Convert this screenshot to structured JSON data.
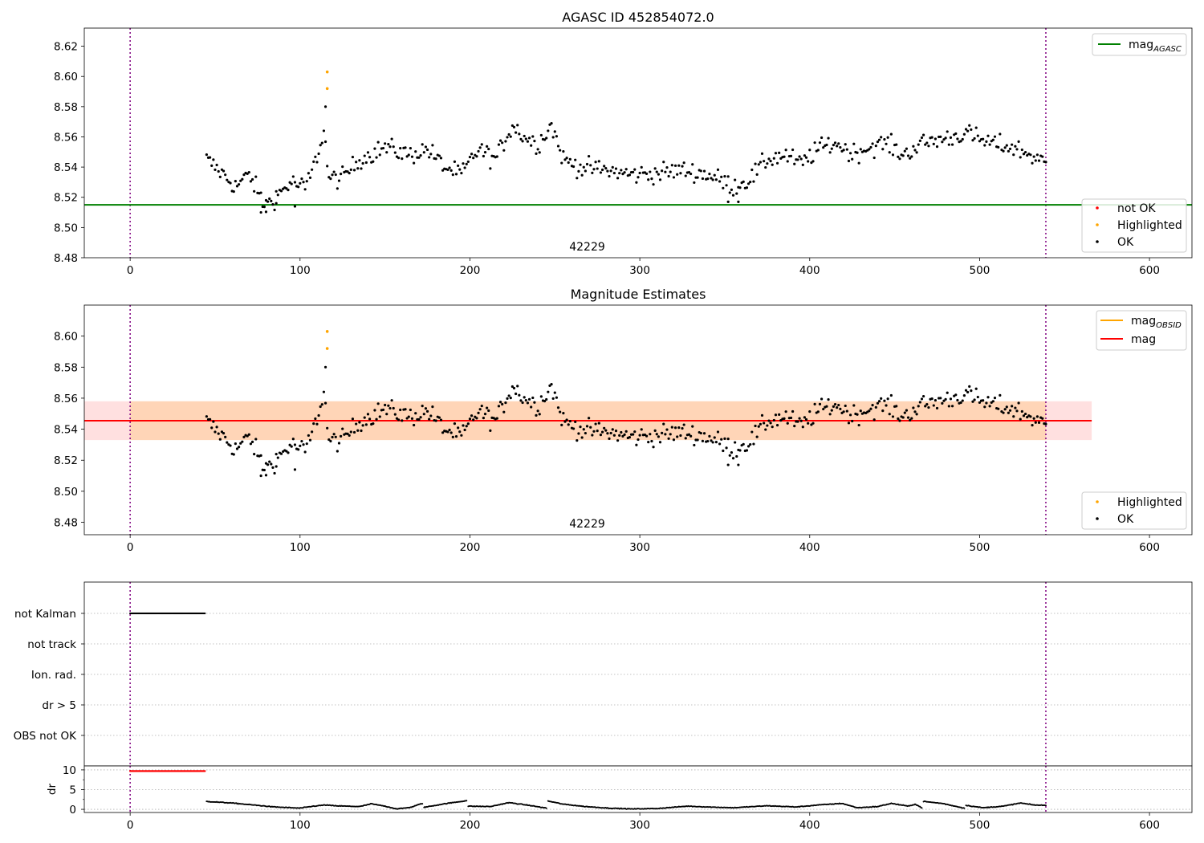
{
  "chart_data": [
    {
      "type": "scatter",
      "title": "AGASC ID 452854072.0",
      "xlim": [
        -27,
        625
      ],
      "ylim": [
        8.48,
        8.632
      ],
      "xticks": [
        0,
        100,
        200,
        300,
        400,
        500,
        600
      ],
      "yticks": [
        8.48,
        8.5,
        8.52,
        8.54,
        8.56,
        8.58,
        8.6,
        8.62
      ],
      "vlines": [
        0,
        539
      ],
      "obsid_label": "42229",
      "obsid_label_x": 269,
      "hlines": [
        {
          "name": "mag_AGASC",
          "y": 8.515,
          "color": "#008000"
        }
      ],
      "legend_lines": [
        {
          "main": "mag",
          "sub": "AGASC",
          "color": "#008000"
        }
      ],
      "legend_points": [
        {
          "label": "not OK",
          "color": "#ff0000"
        },
        {
          "label": "Highlighted",
          "color": "#ffa500"
        },
        {
          "label": "OK",
          "color": "#000000"
        }
      ],
      "highlighted": [
        [
          116,
          8.592
        ],
        [
          116,
          8.603
        ]
      ],
      "ok_series": {
        "x_start": 45,
        "x_end": 539,
        "dx": 1,
        "anchors": [
          [
            45,
            8.545
          ],
          [
            55,
            8.535
          ],
          [
            62,
            8.527
          ],
          [
            70,
            8.535
          ],
          [
            76,
            8.522
          ],
          [
            79,
            8.513
          ],
          [
            85,
            8.52
          ],
          [
            95,
            8.53
          ],
          [
            103,
            8.526
          ],
          [
            108,
            8.54
          ],
          [
            112,
            8.555
          ],
          [
            114,
            8.565
          ],
          [
            117,
            8.532
          ],
          [
            125,
            8.533
          ],
          [
            135,
            8.545
          ],
          [
            150,
            8.553
          ],
          [
            165,
            8.548
          ],
          [
            175,
            8.552
          ],
          [
            185,
            8.54
          ],
          [
            195,
            8.535
          ],
          [
            205,
            8.552
          ],
          [
            215,
            8.545
          ],
          [
            225,
            8.568
          ],
          [
            232,
            8.56
          ],
          [
            240,
            8.555
          ],
          [
            248,
            8.568
          ],
          [
            255,
            8.545
          ],
          [
            265,
            8.54
          ],
          [
            280,
            8.538
          ],
          [
            295,
            8.535
          ],
          [
            310,
            8.536
          ],
          [
            325,
            8.538
          ],
          [
            340,
            8.535
          ],
          [
            350,
            8.53
          ],
          [
            355,
            8.527
          ],
          [
            365,
            8.532
          ],
          [
            375,
            8.545
          ],
          [
            385,
            8.548
          ],
          [
            395,
            8.542
          ],
          [
            405,
            8.552
          ],
          [
            415,
            8.556
          ],
          [
            425,
            8.549
          ],
          [
            435,
            8.553
          ],
          [
            445,
            8.556
          ],
          [
            455,
            8.548
          ],
          [
            465,
            8.555
          ],
          [
            475,
            8.558
          ],
          [
            485,
            8.56
          ],
          [
            492,
            8.563
          ],
          [
            500,
            8.558
          ],
          [
            510,
            8.555
          ],
          [
            520,
            8.553
          ],
          [
            530,
            8.548
          ],
          [
            539,
            8.542
          ]
        ],
        "noise": 0.0045,
        "outliers": [
          [
            77,
            8.51
          ],
          [
            80,
            8.518
          ],
          [
            86,
            8.516
          ],
          [
            97,
            8.514
          ],
          [
            115,
            8.58
          ],
          [
            352,
            8.517
          ],
          [
            358,
            8.517
          ]
        ]
      }
    },
    {
      "type": "scatter",
      "title": "Magnitude Estimates",
      "xlim": [
        -27,
        625
      ],
      "ylim": [
        8.472,
        8.62
      ],
      "xticks": [
        0,
        100,
        200,
        300,
        400,
        500,
        600
      ],
      "yticks": [
        8.48,
        8.5,
        8.52,
        8.54,
        8.56,
        8.58,
        8.6
      ],
      "vlines": [
        0,
        539
      ],
      "obsid_label": "42229",
      "obsid_label_x": 269,
      "hlines": [
        {
          "name": "mag",
          "y": 8.5455,
          "color": "#ff0000",
          "x_end": 566
        }
      ],
      "bands": [
        {
          "name": "mag range",
          "y0": 8.533,
          "y1": 8.558,
          "color": "#ff0000",
          "opacity": 0.12,
          "x_end": 566
        },
        {
          "name": "mag_OBSID range",
          "y0": 8.533,
          "y1": 8.558,
          "color": "#ffa500",
          "opacity": 0.18,
          "x_start": 0,
          "x_end": 539
        }
      ],
      "legend_lines": [
        {
          "main": "mag",
          "sub": "OBSID",
          "color": "#ffa500"
        },
        {
          "main": "mag",
          "sub": "",
          "color": "#ff0000"
        }
      ],
      "legend_points": [
        {
          "label": "Highlighted",
          "color": "#ffa500"
        },
        {
          "label": "OK",
          "color": "#000000"
        }
      ],
      "highlighted": [
        [
          116,
          8.592
        ],
        [
          116,
          8.603
        ]
      ],
      "same_series_as": 0
    },
    {
      "type": "scatter",
      "title": "",
      "xlim": [
        -27,
        625
      ],
      "vlines": [
        0,
        539
      ],
      "flags": [
        "not Kalman",
        "not track",
        "Ion. rad.",
        "dr > 5",
        "OBS not OK"
      ],
      "flag_points": [
        {
          "flag": "not Kalman",
          "x_start": 0,
          "x_end": 44,
          "dx": 0.5
        }
      ]
    },
    {
      "type": "scatter",
      "title": "",
      "ylabel": "dr",
      "xlim": [
        -27,
        625
      ],
      "ylim": [
        -0.8,
        11
      ],
      "xticks": [
        0,
        100,
        200,
        300,
        400,
        500,
        600
      ],
      "yticks": [
        0,
        5,
        10
      ],
      "vlines": [
        0,
        539
      ],
      "high_dr": {
        "x_start": 0,
        "x_end": 44,
        "dx": 0.5,
        "y": 9.7,
        "color": "#ff0000"
      },
      "dr_series": {
        "x_start": 45,
        "x_end": 539,
        "dx": 0.5,
        "segments": [
          [
            [
              45,
              2.0
            ],
            [
              60,
              1.6
            ],
            [
              75,
              1.0
            ],
            [
              85,
              0.6
            ],
            [
              100,
              0.3
            ],
            [
              108,
              0.8
            ],
            [
              115,
              1.1
            ],
            [
              120,
              0.9
            ],
            [
              135,
              0.7
            ],
            [
              142,
              1.4
            ],
            [
              150,
              0.8
            ],
            [
              157,
              0.1
            ],
            [
              165,
              0.5
            ],
            [
              172,
              1.5
            ]
          ],
          [
            [
              173,
              0.5
            ],
            [
              185,
              1.4
            ],
            [
              198,
              2.2
            ]
          ],
          [
            [
              199,
              0.8
            ],
            [
              212,
              0.7
            ],
            [
              223,
              1.7
            ],
            [
              235,
              1.0
            ],
            [
              245,
              0.3
            ]
          ],
          [
            [
              246,
              2.1
            ],
            [
              255,
              1.3
            ],
            [
              268,
              0.7
            ],
            [
              282,
              0.3
            ],
            [
              295,
              0.1
            ],
            [
              310,
              0.2
            ],
            [
              328,
              0.8
            ],
            [
              340,
              0.6
            ],
            [
              355,
              0.4
            ],
            [
              375,
              0.9
            ],
            [
              392,
              0.6
            ],
            [
              405,
              1.1
            ],
            [
              419,
              1.5
            ],
            [
              428,
              0.4
            ],
            [
              440,
              0.7
            ],
            [
              448,
              1.5
            ],
            [
              458,
              0.8
            ],
            [
              462,
              1.3
            ],
            [
              466,
              0.4
            ]
          ],
          [
            [
              467,
              2.0
            ],
            [
              478,
              1.5
            ],
            [
              491,
              0.3
            ]
          ],
          [
            [
              492,
              1.0
            ],
            [
              502,
              0.4
            ],
            [
              514,
              0.8
            ],
            [
              524,
              1.6
            ],
            [
              532,
              1.1
            ],
            [
              539,
              1.0
            ]
          ]
        ]
      }
    }
  ]
}
